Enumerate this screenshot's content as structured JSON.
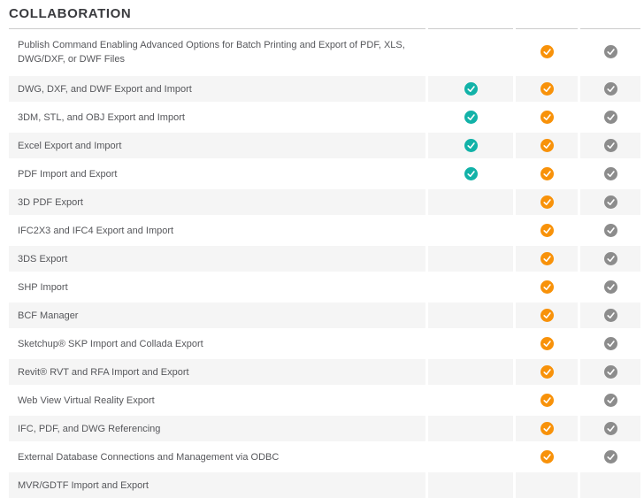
{
  "section_title": "COLLABORATION",
  "check_colors": {
    "teal": "#12b2a8",
    "orange": "#f8920a",
    "gray": "#8c8c8c"
  },
  "table": {
    "column_count": 3,
    "rows": [
      {
        "feature": "Publish Command Enabling Advanced Options for Batch Printing and Export of PDF, XLS, DWG/DXF, or DWF Files",
        "checks": [
          null,
          "orange",
          "gray"
        ]
      },
      {
        "feature": "DWG, DXF, and DWF Export and Import",
        "checks": [
          "teal",
          "orange",
          "gray"
        ]
      },
      {
        "feature": "3DM, STL, and OBJ Export and Import",
        "checks": [
          "teal",
          "orange",
          "gray"
        ]
      },
      {
        "feature": "Excel Export and Import",
        "checks": [
          "teal",
          "orange",
          "gray"
        ]
      },
      {
        "feature": "PDF Import and Export",
        "checks": [
          "teal",
          "orange",
          "gray"
        ]
      },
      {
        "feature": "3D PDF Export",
        "checks": [
          null,
          "orange",
          "gray"
        ]
      },
      {
        "feature": "IFC2X3 and IFC4 Export and Import",
        "checks": [
          null,
          "orange",
          "gray"
        ]
      },
      {
        "feature": "3DS Export",
        "checks": [
          null,
          "orange",
          "gray"
        ]
      },
      {
        "feature": "SHP Import",
        "checks": [
          null,
          "orange",
          "gray"
        ]
      },
      {
        "feature": "BCF Manager",
        "checks": [
          null,
          "orange",
          "gray"
        ]
      },
      {
        "feature": "Sketchup® SKP Import and Collada Export",
        "checks": [
          null,
          "orange",
          "gray"
        ]
      },
      {
        "feature": "Revit® RVT and RFA Import and Export",
        "checks": [
          null,
          "orange",
          "gray"
        ]
      },
      {
        "feature": "Web View Virtual Reality Export",
        "checks": [
          null,
          "orange",
          "gray"
        ]
      },
      {
        "feature": "IFC, PDF, and DWG Referencing",
        "checks": [
          null,
          "orange",
          "gray"
        ]
      },
      {
        "feature": "External Database Connections and Management via ODBC",
        "checks": [
          null,
          "orange",
          "gray"
        ]
      },
      {
        "feature": "MVR/GDTF Import and Export",
        "checks": [
          null,
          null,
          null
        ]
      }
    ]
  }
}
